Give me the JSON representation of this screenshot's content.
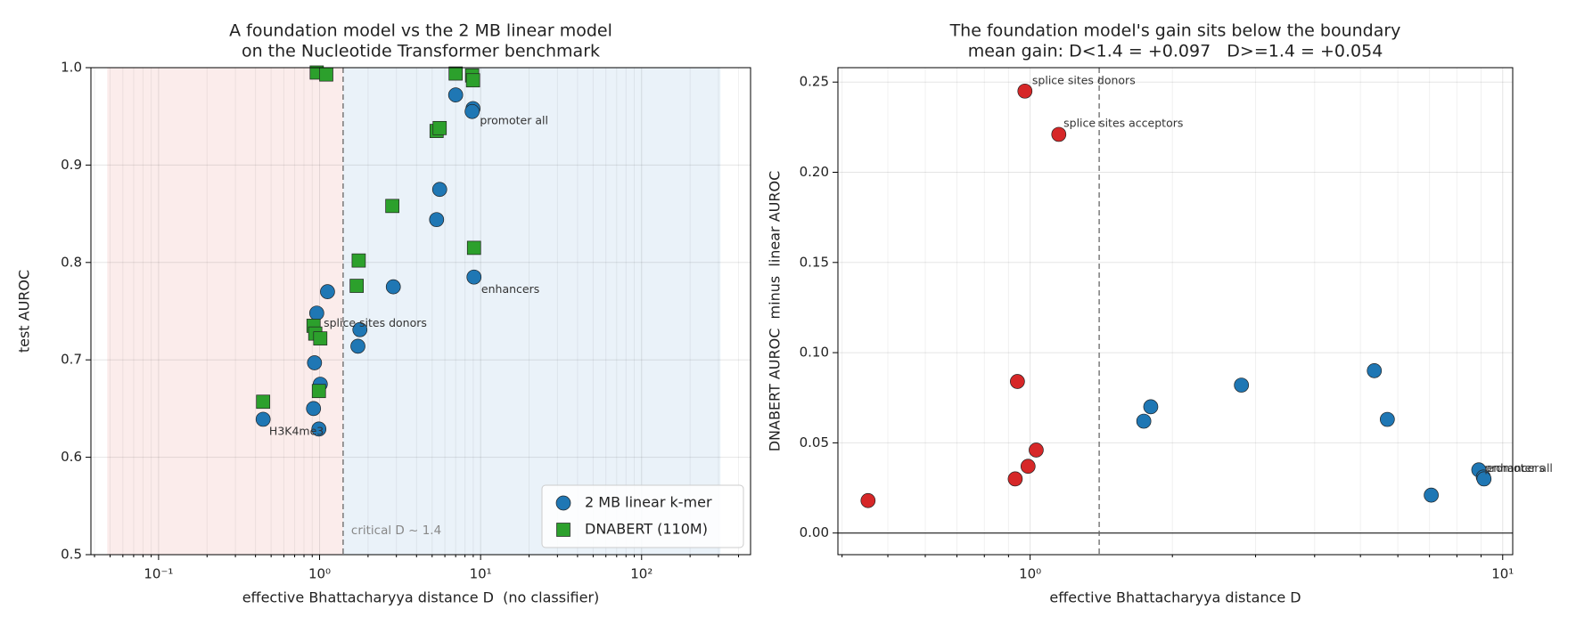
{
  "chart_data": [
    {
      "type": "scatter",
      "title": [
        "A foundation model vs the 2 MB linear model",
        "on the Nucleotide Transformer benchmark"
      ],
      "xlabel": "effective Bhattacharyya distance D  (no classifier)",
      "ylabel": "test AUROC",
      "log_x": true,
      "grid": true,
      "legend": "lower right",
      "xlim": [
        0.038,
        475
      ],
      "ylim": [
        0.5,
        1.0
      ],
      "xticks": [
        {
          "value": 0.1,
          "label": "10⁻¹"
        },
        {
          "value": 1,
          "label": "10⁰"
        },
        {
          "value": 10,
          "label": "10¹"
        },
        {
          "value": 100,
          "label": "10²"
        }
      ],
      "yticks": [
        0.5,
        0.6,
        0.7,
        0.8,
        0.9,
        {
          "value": 1.0,
          "label": "1.0"
        }
      ],
      "regions": [
        {
          "from": 0.048,
          "to": 1.4,
          "color": "#fbeceb"
        },
        {
          "from": 1.4,
          "to": 309,
          "color": "#eaf2f9"
        }
      ],
      "vline": {
        "x": 1.4,
        "label": "critical D ~ 1.4"
      },
      "series": [
        {
          "name": "2 MB linear k-mer",
          "color": "#1f77b4",
          "marker": "circle",
          "x": [
            0.446,
            0.99,
            0.917,
            1.01,
            0.93,
            0.96,
            1.12,
            1.78,
            1.73,
            2.87,
            5.33,
            5.57,
            7.0,
            8.97,
            8.86,
            9.1
          ],
          "values": [
            0.639,
            0.629,
            0.65,
            0.675,
            0.697,
            0.748,
            0.77,
            0.731,
            0.714,
            0.775,
            0.844,
            0.875,
            0.972,
            0.958,
            0.955,
            0.785
          ]
        },
        {
          "name": "DNABERT (110M)",
          "color": "#2ca02c",
          "marker": "square",
          "x": [
            0.446,
            0.96,
            1.1,
            0.917,
            0.94,
            1.01,
            0.99,
            1.75,
            1.7,
            2.83,
            5.33,
            5.57,
            7.0,
            8.86,
            8.97,
            9.1
          ],
          "values": [
            0.657,
            0.995,
            0.993,
            0.735,
            0.727,
            0.722,
            0.668,
            0.802,
            0.776,
            0.858,
            0.935,
            0.938,
            0.994,
            0.992,
            0.987,
            0.815
          ]
        }
      ],
      "annotations": [
        {
          "text": "promoter all",
          "x": 9.9,
          "y": 0.945
        },
        {
          "text": "enhancers",
          "x": 10.1,
          "y": 0.772
        },
        {
          "text": "splice sites donors",
          "x": 1.06,
          "y": 0.737
        },
        {
          "text": "H3K4me3",
          "x": 0.486,
          "y": 0.626
        }
      ]
    },
    {
      "type": "scatter",
      "title": [
        "The foundation model's gain sits below the boundary",
        "mean gain: D<1.4 = +0.097   D>=1.4 = +0.054"
      ],
      "xlabel": "effective Bhattacharyya distance D",
      "ylabel": "DNABERT AUROC  minus  linear AUROC",
      "log_x": true,
      "grid": true,
      "xlim": [
        0.392,
        10.5
      ],
      "ylim": [
        -0.012,
        0.258
      ],
      "xticks": [
        {
          "value": 1,
          "label": "10⁰"
        },
        {
          "value": 10,
          "label": "10¹"
        }
      ],
      "yticks": [
        {
          "value": 0,
          "label": "0.00"
        },
        {
          "value": 0.05,
          "label": "0.05"
        },
        {
          "value": 0.1,
          "label": "0.10"
        },
        {
          "value": 0.15,
          "label": "0.15"
        },
        {
          "value": 0.2,
          "label": "0.20"
        },
        {
          "value": 0.25,
          "label": "0.25"
        }
      ],
      "vline": {
        "x": 1.4
      },
      "hline": 0,
      "series": [
        {
          "color": "#d62728",
          "marker": "circle",
          "x": [
            0.454,
            0.94,
            0.93,
            0.975,
            0.99,
            1.03,
            1.15
          ],
          "values": [
            0.018,
            0.084,
            0.03,
            0.245,
            0.037,
            0.046,
            0.221
          ]
        },
        {
          "color": "#1f77b4",
          "marker": "circle",
          "x": [
            1.74,
            1.8,
            2.8,
            5.35,
            5.7,
            7.06,
            8.9,
            9.1,
            9.13
          ],
          "values": [
            0.062,
            0.07,
            0.082,
            0.09,
            0.063,
            0.021,
            0.035,
            0.031,
            0.03
          ]
        }
      ],
      "annotations": [
        {
          "text": "splice sites donors",
          "x": 1.01,
          "y": 0.2506
        },
        {
          "text": "splice sites acceptors",
          "x": 1.177,
          "y": 0.227
        },
        {
          "text": "enhancers",
          "x": 9.24,
          "y": 0.0357
        },
        {
          "text": "promoter all",
          "x": 9.15,
          "y": 0.0357
        }
      ]
    }
  ]
}
